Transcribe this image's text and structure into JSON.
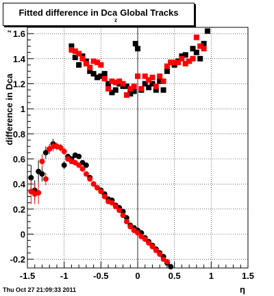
{
  "chart_data": {
    "type": "scatter",
    "title": "Fitted difference in Dca",
    "title_subscript": "z",
    "title_suffix": "Global Tracks",
    "xlabel": "η",
    "ylabel": "difference in Dca",
    "ylabel_subscript": "z",
    "xlim": [
      -1.5,
      1.5
    ],
    "ylim": [
      -0.27,
      1.65
    ],
    "x_ticks": [
      -1.5,
      -1,
      -0.5,
      0,
      0.5,
      1,
      1.5
    ],
    "x_tick_labels": [
      "-1.5",
      "-1",
      "-0.5",
      "0",
      "0.5",
      "1",
      "1.5"
    ],
    "y_ticks": [
      -0.2,
      0,
      0.2,
      0.4,
      0.6,
      0.8,
      1,
      1.2,
      1.4,
      1.6
    ],
    "y_tick_labels": [
      "-0.2",
      "0",
      "0.2",
      "0.4",
      "0.6",
      "0.8",
      "1",
      "1.2",
      "1.4",
      "1.6"
    ],
    "grid": true,
    "series": [
      {
        "color": "#000000",
        "marker": "square",
        "points": [
          [
            -0.9,
            1.5
          ],
          [
            -0.85,
            1.41
          ],
          [
            -0.8,
            1.35
          ],
          [
            -0.75,
            1.42
          ],
          [
            -0.7,
            1.38
          ],
          [
            -0.65,
            1.3
          ],
          [
            -0.6,
            1.28
          ],
          [
            -0.55,
            1.25
          ],
          [
            -0.5,
            1.26
          ],
          [
            -0.45,
            1.28
          ],
          [
            -0.4,
            1.2
          ],
          [
            -0.35,
            1.13
          ],
          [
            -0.3,
            1.15
          ],
          [
            -0.25,
            1.2
          ],
          [
            -0.2,
            1.18
          ],
          [
            -0.15,
            1.18
          ],
          [
            -0.1,
            1.12
          ],
          [
            -0.05,
            1.14
          ],
          [
            -0.03,
            1.52
          ],
          [
            0.0,
            1.48
          ],
          [
            0.05,
            1.15
          ],
          [
            0.1,
            1.2
          ],
          [
            0.15,
            1.17
          ],
          [
            0.2,
            1.2
          ],
          [
            0.25,
            1.15
          ],
          [
            0.3,
            1.22
          ],
          [
            0.35,
            1.15
          ],
          [
            0.4,
            1.3
          ],
          [
            0.45,
            1.37
          ],
          [
            0.5,
            1.35
          ],
          [
            0.55,
            1.38
          ],
          [
            0.6,
            1.42
          ],
          [
            0.65,
            1.43
          ],
          [
            0.7,
            1.38
          ],
          [
            0.75,
            1.48
          ],
          [
            0.8,
            1.45
          ],
          [
            0.85,
            1.4
          ],
          [
            0.9,
            1.52
          ],
          [
            0.95,
            1.62
          ]
        ]
      },
      {
        "color": "#ff0000",
        "marker": "square",
        "points": [
          [
            -0.9,
            1.47
          ],
          [
            -0.85,
            1.46
          ],
          [
            -0.8,
            1.44
          ],
          [
            -0.75,
            1.4
          ],
          [
            -0.7,
            1.36
          ],
          [
            -0.65,
            1.33
          ],
          [
            -0.6,
            1.38
          ],
          [
            -0.55,
            1.37
          ],
          [
            -0.5,
            1.35
          ],
          [
            -0.45,
            1.24
          ],
          [
            -0.4,
            1.16
          ],
          [
            -0.35,
            1.22
          ],
          [
            -0.3,
            1.21
          ],
          [
            -0.25,
            1.22
          ],
          [
            -0.2,
            1.2
          ],
          [
            -0.15,
            1.11
          ],
          [
            -0.1,
            1.16
          ],
          [
            -0.05,
            1.18
          ],
          [
            0.0,
            1.26
          ],
          [
            0.05,
            1.16
          ],
          [
            0.1,
            1.26
          ],
          [
            0.15,
            1.23
          ],
          [
            0.2,
            1.25
          ],
          [
            0.25,
            1.18
          ],
          [
            0.3,
            1.26
          ],
          [
            0.35,
            1.22
          ],
          [
            0.4,
            1.34
          ],
          [
            0.45,
            1.37
          ],
          [
            0.5,
            1.37
          ],
          [
            0.55,
            1.37
          ],
          [
            0.6,
            1.4
          ],
          [
            0.65,
            1.36
          ],
          [
            0.7,
            1.38
          ],
          [
            0.75,
            1.4
          ],
          [
            0.8,
            1.57
          ],
          [
            0.85,
            1.5
          ],
          [
            0.9,
            1.48
          ]
        ]
      },
      {
        "color": "#000000",
        "marker": "circle",
        "points": [
          [
            -1.45,
            0.45,
            0.1
          ],
          [
            -1.4,
            0.35,
            0.08
          ],
          [
            -1.35,
            0.5,
            0.09
          ],
          [
            -1.3,
            0.48,
            0.06
          ],
          [
            -1.25,
            0.65,
            0.05
          ],
          [
            -1.2,
            0.68,
            0.04
          ],
          [
            -1.15,
            0.72,
            0.04
          ],
          [
            -1.1,
            0.7,
            0.03
          ],
          [
            -1.05,
            0.69,
            0.03
          ],
          [
            -1.0,
            0.55,
            0.03
          ],
          [
            -0.95,
            0.62,
            0.02
          ],
          [
            -0.9,
            0.6,
            0.02
          ],
          [
            -0.85,
            0.63,
            0.02
          ],
          [
            -0.8,
            0.62,
            0.02
          ],
          [
            -0.75,
            0.57,
            0.02
          ],
          [
            -0.7,
            0.55,
            0.02
          ],
          [
            -0.65,
            0.45,
            0.02
          ],
          [
            -0.6,
            0.4,
            0.02
          ],
          [
            -0.55,
            0.37,
            0.02
          ],
          [
            -0.5,
            0.35,
            0.02
          ],
          [
            -0.45,
            0.32,
            0.02
          ],
          [
            -0.4,
            0.28,
            0.02
          ],
          [
            -0.35,
            0.27,
            0.02
          ],
          [
            -0.3,
            0.23,
            0.02
          ],
          [
            -0.25,
            0.21,
            0.02
          ],
          [
            -0.2,
            0.18,
            0.02
          ],
          [
            -0.15,
            0.13,
            0.02
          ],
          [
            -0.1,
            0.07,
            0.02
          ],
          [
            -0.05,
            0.05,
            0.02
          ],
          [
            0.0,
            0.03,
            0.02
          ],
          [
            0.05,
            0.01,
            0.02
          ],
          [
            0.1,
            -0.03,
            0.02
          ],
          [
            0.15,
            -0.06,
            0.02
          ],
          [
            0.2,
            -0.09,
            0.02
          ],
          [
            0.25,
            -0.12,
            0.02
          ],
          [
            0.3,
            -0.15,
            0.02
          ],
          [
            0.35,
            -0.18,
            0.02
          ],
          [
            0.4,
            -0.23,
            0.02
          ],
          [
            0.45,
            -0.26,
            0.02
          ]
        ]
      },
      {
        "color": "#ff0000",
        "marker": "circle",
        "points": [
          [
            -1.45,
            0.34,
            0.1
          ],
          [
            -1.4,
            0.32,
            0.08
          ],
          [
            -1.35,
            0.33,
            0.09
          ],
          [
            -1.3,
            0.58,
            0.06
          ],
          [
            -1.25,
            0.44,
            0.05
          ],
          [
            -1.2,
            0.68,
            0.04
          ],
          [
            -1.15,
            0.7,
            0.04
          ],
          [
            -1.1,
            0.7,
            0.03
          ],
          [
            -1.05,
            0.69,
            0.03
          ],
          [
            -1.0,
            0.66,
            0.03
          ],
          [
            -0.95,
            0.6,
            0.02
          ],
          [
            -0.9,
            0.58,
            0.02
          ],
          [
            -0.85,
            0.57,
            0.02
          ],
          [
            -0.8,
            0.55,
            0.02
          ],
          [
            -0.75,
            0.52,
            0.02
          ],
          [
            -0.7,
            0.48,
            0.02
          ],
          [
            -0.65,
            0.44,
            0.02
          ],
          [
            -0.6,
            0.4,
            0.02
          ],
          [
            -0.55,
            0.37,
            0.02
          ],
          [
            -0.5,
            0.34,
            0.02
          ],
          [
            -0.45,
            0.3,
            0.02
          ],
          [
            -0.4,
            0.26,
            0.02
          ],
          [
            -0.35,
            0.25,
            0.02
          ],
          [
            -0.3,
            0.22,
            0.02
          ],
          [
            -0.25,
            0.19,
            0.02
          ],
          [
            -0.2,
            0.15,
            0.02
          ],
          [
            -0.15,
            0.1,
            0.02
          ],
          [
            -0.1,
            0.06,
            0.02
          ],
          [
            -0.05,
            0.03,
            0.02
          ],
          [
            0.0,
            0.01,
            0.02
          ],
          [
            0.05,
            -0.02,
            0.02
          ],
          [
            0.1,
            -0.04,
            0.02
          ],
          [
            0.15,
            -0.07,
            0.02
          ],
          [
            0.2,
            -0.1,
            0.02
          ],
          [
            0.25,
            -0.13,
            0.02
          ],
          [
            0.3,
            -0.16,
            0.02
          ],
          [
            0.35,
            -0.2,
            0.02
          ],
          [
            0.4,
            -0.22,
            0.02
          ]
        ]
      }
    ]
  },
  "footer": "Thu Oct 27 21:09:33 2011"
}
